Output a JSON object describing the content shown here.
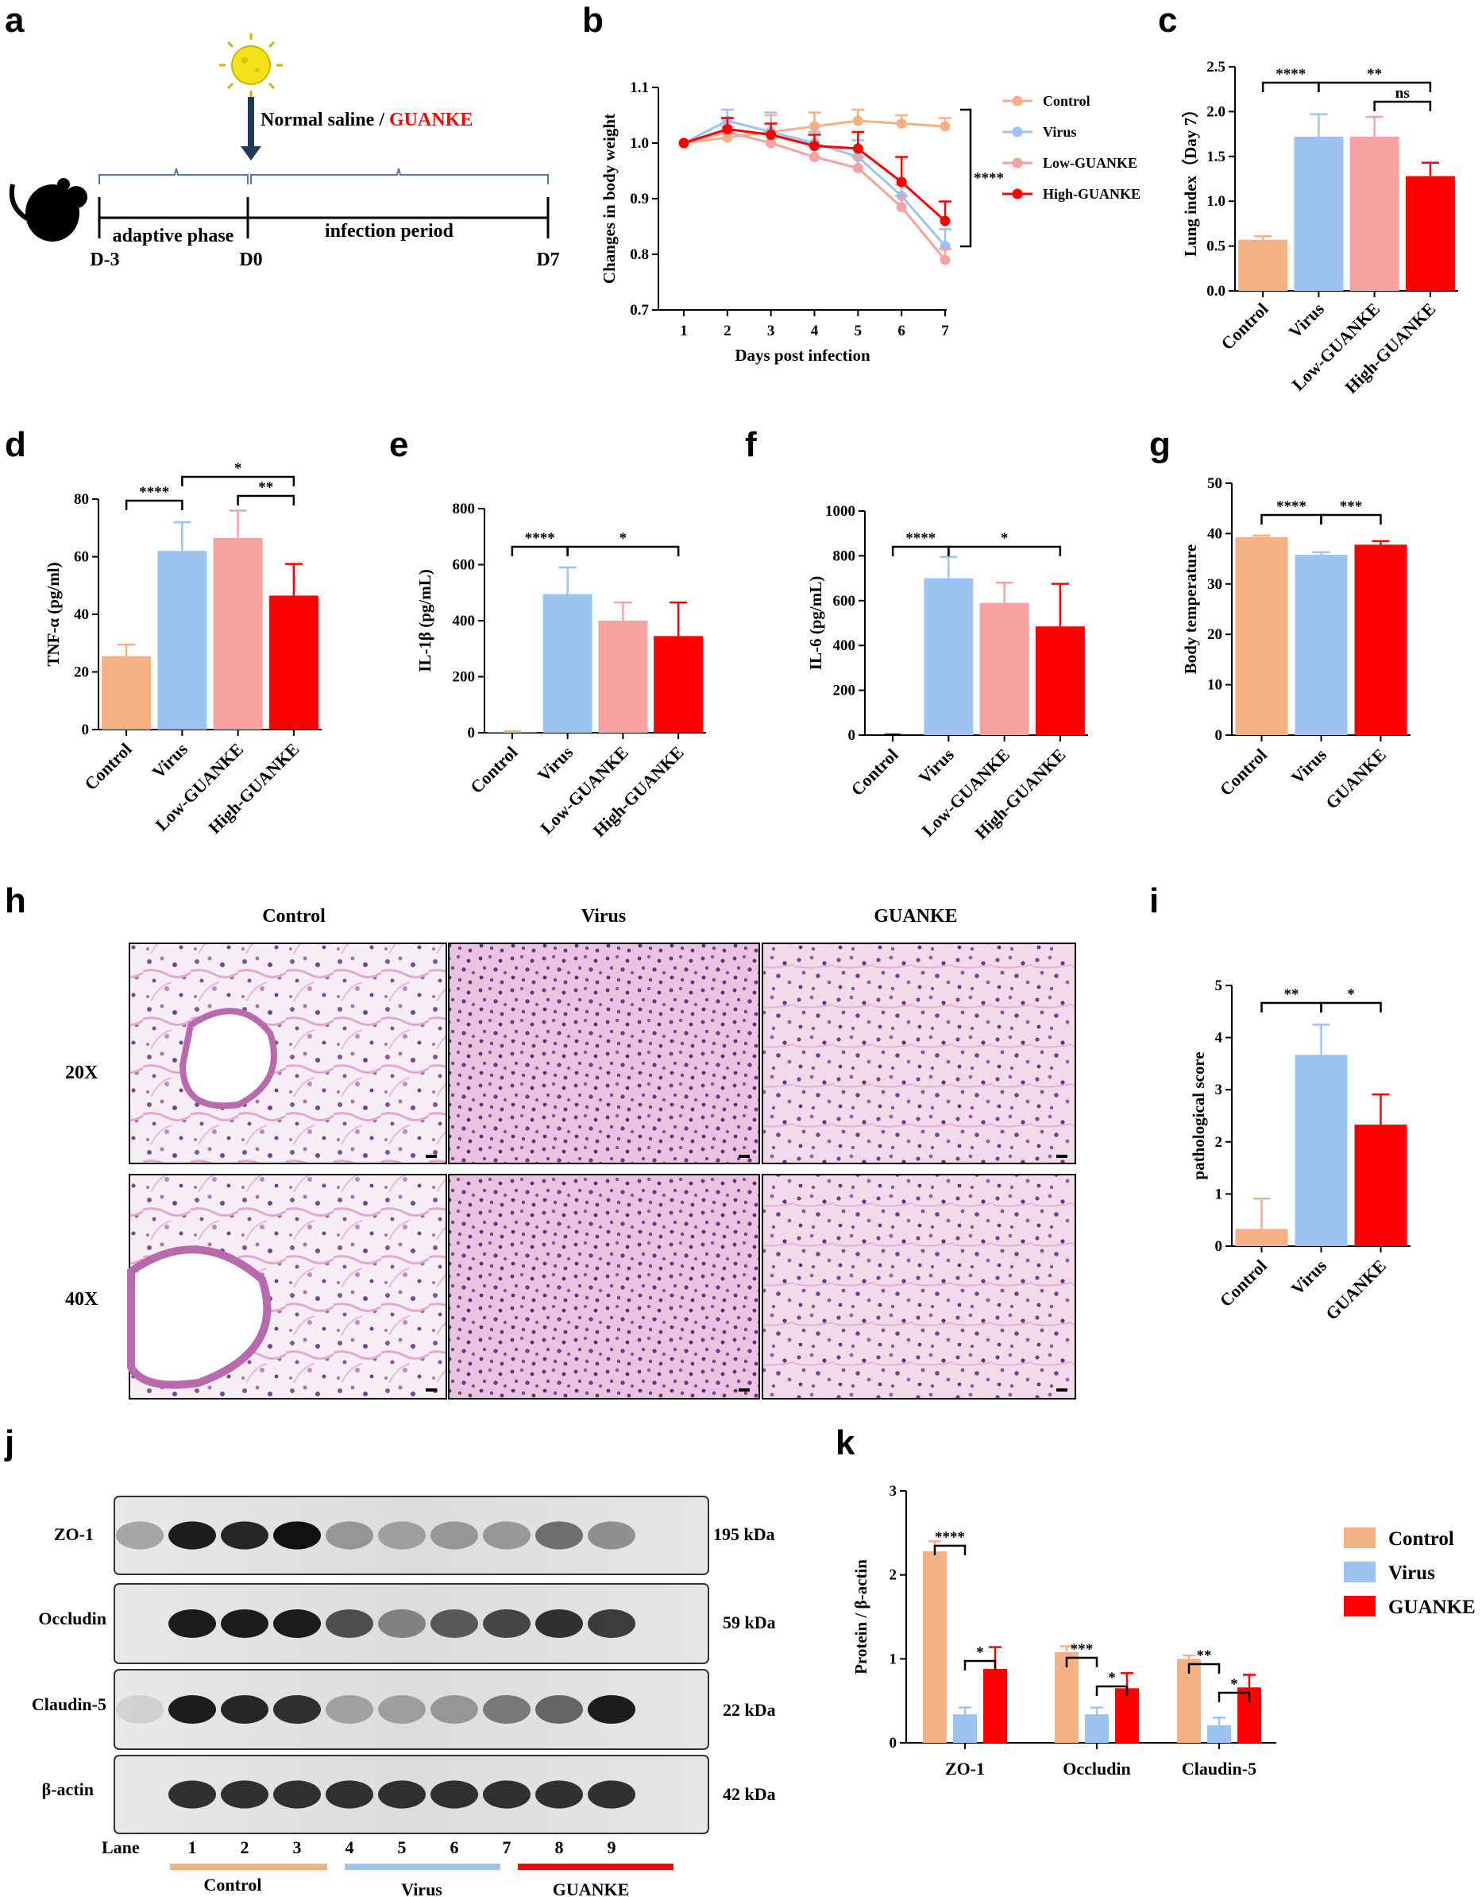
{
  "panel_labels": {
    "a": "a",
    "b": "b",
    "c": "c",
    "d": "d",
    "e": "e",
    "f": "f",
    "g": "g",
    "h": "h",
    "i": "i",
    "j": "j",
    "k": "k"
  },
  "colors": {
    "control": "#F4B183",
    "virus": "#9DC3F3",
    "low": "#F7A1A1",
    "high": "#FF0000",
    "guanke_text": "#FF0000"
  },
  "timeline": {
    "treatment_prefix": "Normal saline / ",
    "treatment_highlight": "GUANKE",
    "phase1": "adaptive phase",
    "phase2": "infection period",
    "days": [
      "D-3",
      "D0",
      "D7"
    ],
    "icons": [
      "virus-icon",
      "mouse-icon",
      "arrow-down-icon"
    ]
  },
  "histology": {
    "columns": [
      "Control",
      "Virus",
      "GUANKE"
    ],
    "rows": [
      "20X",
      "40X"
    ]
  },
  "western": {
    "bands": [
      {
        "name": "ZO-1",
        "kda": "195  kDa"
      },
      {
        "name": "Occludin",
        "kda": "59 kDa"
      },
      {
        "name": "Claudin-5",
        "kda": "22 kDa"
      },
      {
        "name": "β-actin",
        "kda": "42 kDa"
      }
    ],
    "lane_title": "Lane",
    "lanes": [
      "1",
      "2",
      "3",
      "4",
      "5",
      "6",
      "7",
      "8",
      "9"
    ],
    "groups": [
      "Control",
      "Virus",
      "GUANKE"
    ]
  },
  "chart_data": [
    {
      "panel": "b",
      "type": "line",
      "xlabel": "Days post infection",
      "ylabel": "Changes in body weight",
      "x": [
        1,
        2,
        3,
        4,
        5,
        6,
        7
      ],
      "xlim": [
        1,
        7
      ],
      "ylim": [
        0.7,
        1.1
      ],
      "xticks": [
        "1",
        "2",
        "3",
        "4",
        "5",
        "6",
        "7"
      ],
      "yticks": [
        "0.7",
        "0.8",
        "0.9",
        "1.0",
        "1.1"
      ],
      "series": [
        {
          "name": "Control",
          "values": [
            1.0,
            1.01,
            1.02,
            1.03,
            1.04,
            1.035,
            1.03
          ],
          "errors": [
            0,
            0.01,
            0.03,
            0.025,
            0.02,
            0.015,
            0.015
          ]
        },
        {
          "name": "Virus",
          "values": [
            1.0,
            1.04,
            1.02,
            1.0,
            0.975,
            0.905,
            0.815
          ],
          "errors": [
            0,
            0.02,
            0.035,
            0.02,
            0.03,
            0.02,
            0.03
          ]
        },
        {
          "name": "Low-GUANKE",
          "values": [
            1.0,
            1.02,
            1.0,
            0.975,
            0.955,
            0.885,
            0.79
          ],
          "errors": [
            0,
            0.01,
            0.02,
            0.02,
            0.02,
            0.02,
            0.02
          ]
        },
        {
          "name": "High-GUANKE",
          "values": [
            1.0,
            1.025,
            1.015,
            0.995,
            0.99,
            0.93,
            0.86
          ],
          "errors": [
            0,
            0.02,
            0.02,
            0.02,
            0.03,
            0.045,
            0.035
          ]
        }
      ],
      "annotations": [
        "****"
      ],
      "legend": "right"
    },
    {
      "panel": "c",
      "type": "bar",
      "ylabel": "Lung index（Day 7）",
      "categories": [
        "Control",
        "Virus",
        "Low-GUANKE",
        "High-GUANKE"
      ],
      "values": [
        0.57,
        1.72,
        1.72,
        1.28
      ],
      "errors": [
        0.04,
        0.25,
        0.22,
        0.15
      ],
      "ylim": [
        0,
        2.5
      ],
      "yticks": [
        "0.0",
        "0.5",
        "1.0",
        "1.5",
        "2.0",
        "2.5"
      ],
      "significance": [
        "****",
        "**",
        "ns"
      ]
    },
    {
      "panel": "d",
      "type": "bar",
      "ylabel": "TNF-α (pg/ml)",
      "categories": [
        "Control",
        "Virus",
        "Low-GUANKE",
        "High-GUANKE"
      ],
      "values": [
        25.5,
        62,
        66.5,
        46.5
      ],
      "errors": [
        4,
        10,
        9.5,
        11
      ],
      "ylim": [
        0,
        80
      ],
      "yticks": [
        "0",
        "20",
        "40",
        "60",
        "80"
      ],
      "significance": [
        "****",
        "*",
        "**"
      ]
    },
    {
      "panel": "e",
      "type": "bar",
      "ylabel": "IL-1β (pg/mL)",
      "categories": [
        "Control",
        "Virus",
        "Low-GUANKE",
        "High-GUANKE"
      ],
      "values": [
        2,
        495,
        400,
        345
      ],
      "errors": [
        3,
        95,
        65,
        120
      ],
      "ylim": [
        0,
        800
      ],
      "yticks": [
        "0",
        "200",
        "400",
        "600",
        "800"
      ],
      "significance": [
        "****",
        "*"
      ]
    },
    {
      "panel": "f",
      "type": "bar",
      "ylabel": "IL-6 (pg/mL)",
      "categories": [
        "Control",
        "Virus",
        "Low-GUANKE",
        "High-GUANKE"
      ],
      "values": [
        0,
        700,
        590,
        485
      ],
      "errors": [
        0,
        95,
        90,
        190
      ],
      "ylim": [
        0,
        1000
      ],
      "yticks": [
        "0",
        "200",
        "400",
        "600",
        "800",
        "1000"
      ],
      "significance": [
        "****",
        "*"
      ]
    },
    {
      "panel": "g",
      "type": "bar",
      "ylabel": "Body temperature",
      "categories": [
        "Control",
        "Virus",
        "GUANKE"
      ],
      "values": [
        39.3,
        35.8,
        37.8
      ],
      "errors": [
        0.3,
        0.5,
        0.7
      ],
      "ylim": [
        0,
        50
      ],
      "yticks": [
        "0",
        "10",
        "20",
        "30",
        "40",
        "50"
      ],
      "significance": [
        "****",
        "***"
      ]
    },
    {
      "panel": "i",
      "type": "bar",
      "ylabel": "pathological score",
      "categories": [
        "Control",
        "Virus",
        "GUANKE"
      ],
      "values": [
        0.33,
        3.67,
        2.33
      ],
      "errors": [
        0.58,
        0.58,
        0.58
      ],
      "ylim": [
        0,
        5
      ],
      "yticks": [
        "0",
        "1",
        "2",
        "3",
        "4",
        "5"
      ],
      "significance": [
        "**",
        "*"
      ]
    },
    {
      "panel": "k",
      "type": "bar",
      "ylabel": "Protein / β-actin",
      "categories": [
        "ZO-1",
        "Occludin",
        "Claudin-5"
      ],
      "series": [
        {
          "name": "Control",
          "values": [
            2.28,
            1.08,
            1.0
          ],
          "errors": [
            0.12,
            0.07,
            0.04
          ]
        },
        {
          "name": "Virus",
          "values": [
            0.34,
            0.34,
            0.21
          ],
          "errors": [
            0.08,
            0.08,
            0.09
          ]
        },
        {
          "name": "GUANKE",
          "values": [
            0.88,
            0.65,
            0.66
          ],
          "errors": [
            0.26,
            0.18,
            0.15
          ]
        }
      ],
      "ylim": [
        0,
        3
      ],
      "yticks": [
        "0",
        "1",
        "2",
        "3"
      ],
      "significance": [
        "****",
        "*",
        "***",
        "*",
        "**",
        "*"
      ],
      "legend": "right"
    }
  ]
}
